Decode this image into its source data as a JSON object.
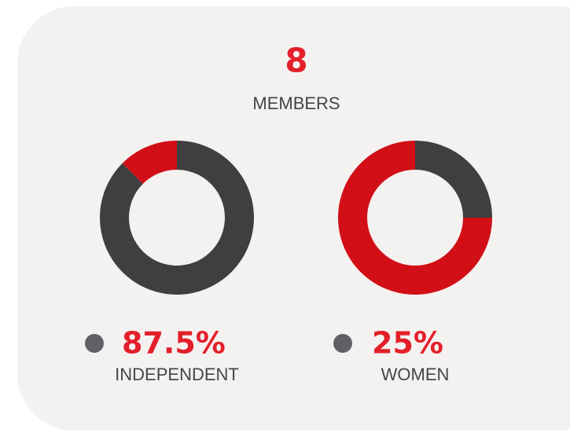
{
  "header": {
    "count": 8,
    "label": "MEMBERS"
  },
  "chart_data": [
    {
      "type": "donut",
      "categories": [
        "INDEPENDENT",
        null
      ],
      "values": [
        87.5,
        12.5
      ],
      "value_labels": [
        "87.5%",
        null
      ],
      "colors": [
        "#3f3f3f",
        "#d20f17"
      ]
    },
    {
      "type": "donut",
      "categories": [
        "WOMEN",
        null
      ],
      "values": [
        25,
        75
      ],
      "value_labels": [
        "25%",
        null
      ],
      "colors": [
        "#3f3f3f",
        "#d20f17"
      ]
    }
  ]
}
